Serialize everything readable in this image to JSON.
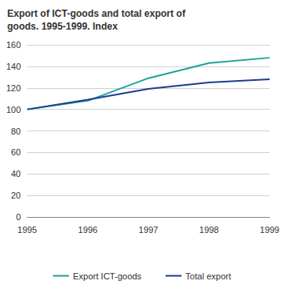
{
  "chart_data": {
    "type": "line",
    "title": "Export of ICT-goods and total export of goods. 1995-1999. Index",
    "categories": [
      "1995",
      "1996",
      "1997",
      "1998",
      "1999"
    ],
    "series": [
      {
        "name": "Export ICT-goods",
        "color": "#1fa39b",
        "values": [
          100,
          108,
          129,
          143,
          148
        ]
      },
      {
        "name": "Total export",
        "color": "#1c3f8e",
        "values": [
          100,
          109,
          119,
          125,
          128
        ]
      }
    ],
    "ylim": [
      0,
      160
    ],
    "yticks": [
      0,
      20,
      40,
      60,
      80,
      100,
      120,
      140,
      160
    ],
    "grid": true,
    "legend": "bottom"
  }
}
